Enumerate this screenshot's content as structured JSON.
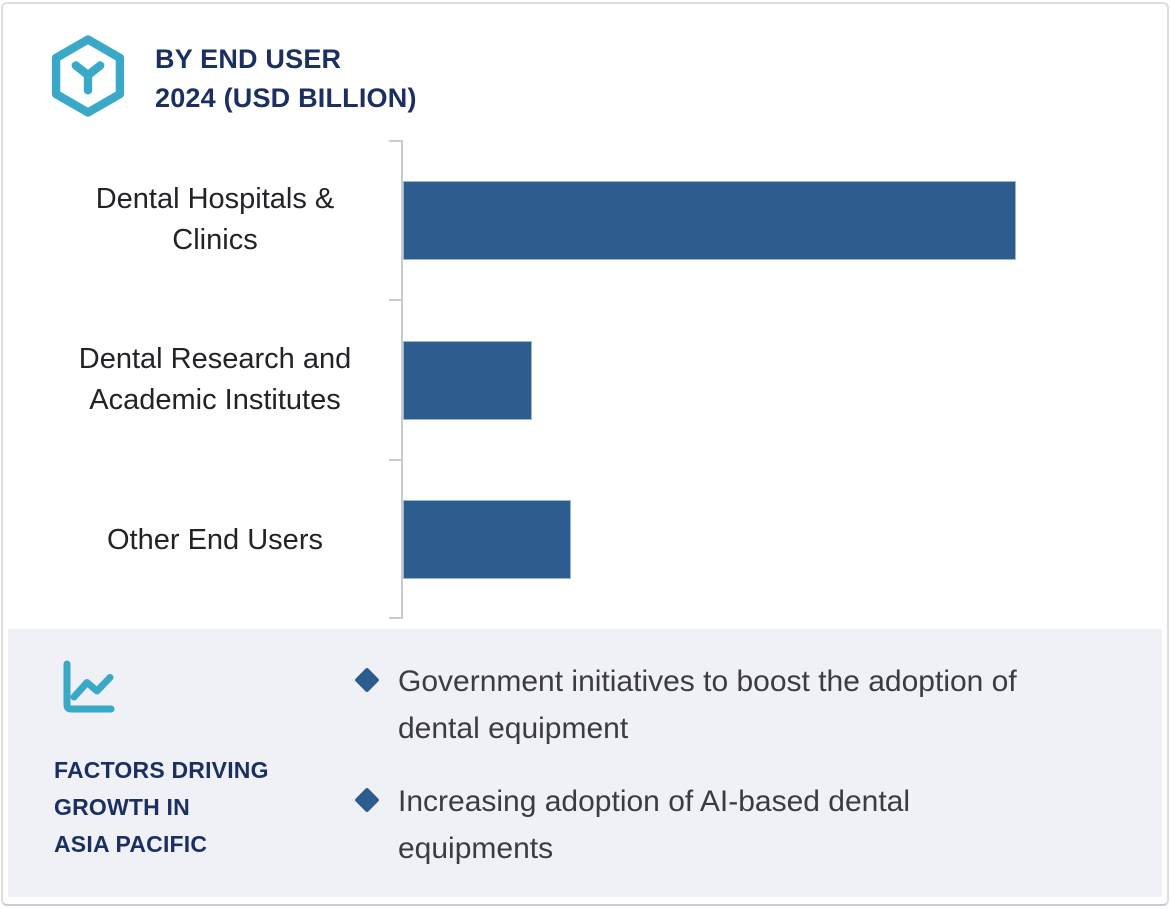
{
  "header": {
    "icon": "hexagon-cube-icon",
    "title_line1": "BY END USER",
    "title_line2": "2024 (USD BILLION)"
  },
  "chart_data": {
    "type": "bar",
    "orientation": "horizontal",
    "title": "BY END USER 2024 (USD BILLION)",
    "unit": "USD Billion",
    "categories": [
      "Dental Hospitals & Clinics",
      "Dental Research and Academic Institutes",
      "Other End Users"
    ],
    "label_lines": [
      [
        "Dental Hospitals &",
        "Clinics"
      ],
      [
        "Dental Research and",
        "Academic Institutes"
      ],
      [
        "Other End Users"
      ]
    ],
    "values_normalized_to_max": [
      1.0,
      0.21,
      0.274
    ],
    "value_labels_shown": false,
    "value_axis_shown": false,
    "grid": false,
    "legend": "none",
    "bar_color": "#2d5c8e",
    "axis_color": "#c9cbcf"
  },
  "footer_panel": {
    "icon": "line-chart-icon",
    "background": "#eff1f6",
    "heading_lines": [
      "FACTORS DRIVING",
      "GROWTH IN",
      "ASIA PACIFIC"
    ],
    "bullet_marker": "diamond",
    "bullet_color": "#2b5c8d",
    "bullets": [
      {
        "lines": [
          "Government initiatives to boost the adoption of",
          "dental equipment"
        ]
      },
      {
        "lines": [
          "Increasing adoption of AI-based dental",
          "equipments"
        ]
      }
    ]
  },
  "colors": {
    "accent_teal": "#3aa9c8",
    "heading_navy": "#1b3061",
    "bar_blue": "#2d5c8e",
    "text_dark": "#3c3c3f"
  }
}
